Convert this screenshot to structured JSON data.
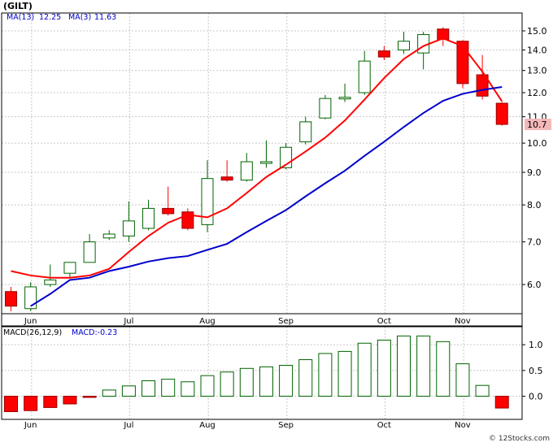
{
  "title": "(GILT)",
  "watermark": "© 12Stocks.com",
  "colors": {
    "up": "#006400",
    "down": "#ff0000",
    "ma_slow": "#0000cc",
    "ma_fast": "#ff0000",
    "grid": "#c8c8c8",
    "legend_text": "#0000cc",
    "last_price_bg": "#f4b8b8"
  },
  "price_panel": {
    "legend": [
      {
        "label": "MA(13)",
        "value": "12.25"
      },
      {
        "label": "MA(3)",
        "value": "11.63"
      }
    ],
    "last_price_label": "10.7"
  },
  "macd_panel": {
    "legend": {
      "label": "MACD(26,12,9)",
      "value": "MACD:-0.23"
    }
  },
  "chart_data": [
    {
      "type": "candlestick",
      "scale": "log",
      "ylim": [
        5.4,
        16.0
      ],
      "y_ticks": [
        6.0,
        7.0,
        8.0,
        9.0,
        10.0,
        11.0,
        12.0,
        13.0,
        14.0,
        15.0
      ],
      "y_tick_labels": [
        "6.0",
        "7.0",
        "8.0",
        "9.0",
        "10.0",
        "11.0",
        "12.0",
        "13.0",
        "14.0",
        "15.0"
      ],
      "x_labels": [
        {
          "label": "Jun",
          "index": 1
        },
        {
          "label": "Jul",
          "index": 6
        },
        {
          "label": "Aug",
          "index": 10
        },
        {
          "label": "Sep",
          "index": 14
        },
        {
          "label": "Oct",
          "index": 19
        },
        {
          "label": "Nov",
          "index": 23
        }
      ],
      "grid": true,
      "candles": [
        {
          "o": 5.85,
          "h": 5.95,
          "l": 5.45,
          "c": 5.55
        },
        {
          "o": 5.5,
          "h": 6.05,
          "l": 5.45,
          "c": 5.95
        },
        {
          "o": 6.0,
          "h": 6.45,
          "l": 5.95,
          "c": 6.1
        },
        {
          "o": 6.25,
          "h": 6.5,
          "l": 6.15,
          "c": 6.5
        },
        {
          "o": 6.5,
          "h": 7.2,
          "l": 6.5,
          "c": 7.0
        },
        {
          "o": 7.1,
          "h": 7.3,
          "l": 7.05,
          "c": 7.2
        },
        {
          "o": 7.15,
          "h": 8.1,
          "l": 7.0,
          "c": 7.55
        },
        {
          "o": 7.35,
          "h": 8.15,
          "l": 7.3,
          "c": 7.9
        },
        {
          "o": 7.9,
          "h": 8.55,
          "l": 7.7,
          "c": 7.75
        },
        {
          "o": 7.8,
          "h": 7.9,
          "l": 7.3,
          "c": 7.35
        },
        {
          "o": 7.45,
          "h": 9.4,
          "l": 7.25,
          "c": 8.8
        },
        {
          "o": 8.85,
          "h": 9.4,
          "l": 8.7,
          "c": 8.75
        },
        {
          "o": 8.75,
          "h": 9.65,
          "l": 8.7,
          "c": 9.35
        },
        {
          "o": 9.35,
          "h": 10.1,
          "l": 9.15,
          "c": 9.35
        },
        {
          "o": 9.15,
          "h": 10.0,
          "l": 9.1,
          "c": 9.85
        },
        {
          "o": 10.05,
          "h": 11.0,
          "l": 9.95,
          "c": 10.8
        },
        {
          "o": 10.95,
          "h": 11.9,
          "l": 10.9,
          "c": 11.75
        },
        {
          "o": 11.8,
          "h": 12.4,
          "l": 11.6,
          "c": 11.8
        },
        {
          "o": 12.0,
          "h": 13.95,
          "l": 11.9,
          "c": 13.45
        },
        {
          "o": 13.95,
          "h": 14.2,
          "l": 13.5,
          "c": 13.65
        },
        {
          "o": 14.0,
          "h": 14.95,
          "l": 13.8,
          "c": 14.45
        },
        {
          "o": 13.85,
          "h": 14.95,
          "l": 13.05,
          "c": 14.8
        },
        {
          "o": 15.1,
          "h": 15.2,
          "l": 14.2,
          "c": 14.55
        },
        {
          "o": 14.45,
          "h": 14.5,
          "l": 12.2,
          "c": 12.4
        },
        {
          "o": 12.8,
          "h": 13.75,
          "l": 11.7,
          "c": 11.85
        },
        {
          "o": 11.55,
          "h": 11.6,
          "l": 10.65,
          "c": 10.7
        }
      ],
      "ma13": [
        null,
        5.55,
        5.8,
        6.1,
        6.15,
        6.3,
        6.4,
        6.52,
        6.6,
        6.65,
        6.8,
        6.95,
        7.25,
        7.55,
        7.85,
        8.25,
        8.65,
        9.05,
        9.55,
        10.05,
        10.6,
        11.15,
        11.65,
        11.95,
        12.12,
        12.25
      ],
      "ma3": [
        6.3,
        6.2,
        6.15,
        6.15,
        6.2,
        6.35,
        6.75,
        7.15,
        7.5,
        7.72,
        7.65,
        7.9,
        8.35,
        8.85,
        9.25,
        9.7,
        10.2,
        10.85,
        11.7,
        12.65,
        13.55,
        14.2,
        14.6,
        14.2,
        12.95,
        11.63
      ]
    },
    {
      "type": "bar",
      "title": "MACD(26,12,9)",
      "ylim": [
        -0.45,
        1.35
      ],
      "y_ticks": [
        0.0,
        0.5,
        1.0
      ],
      "y_tick_labels": [
        "0.0",
        "0.5",
        "1.0"
      ],
      "x_labels": [
        {
          "label": "Jun",
          "index": 1
        },
        {
          "label": "Jul",
          "index": 6
        },
        {
          "label": "Aug",
          "index": 10
        },
        {
          "label": "Sep",
          "index": 14
        },
        {
          "label": "Oct",
          "index": 19
        },
        {
          "label": "Nov",
          "index": 23
        }
      ],
      "values": [
        -0.3,
        -0.28,
        -0.22,
        -0.15,
        -0.02,
        0.12,
        0.2,
        0.3,
        0.33,
        0.28,
        0.4,
        0.47,
        0.54,
        0.57,
        0.6,
        0.71,
        0.83,
        0.87,
        1.03,
        1.09,
        1.17,
        1.17,
        1.06,
        0.63,
        0.21,
        -0.23
      ]
    }
  ]
}
